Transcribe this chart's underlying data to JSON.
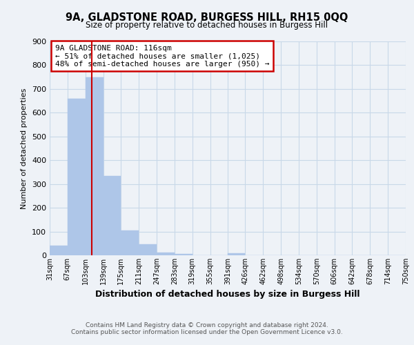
{
  "title": "9A, GLADSTONE ROAD, BURGESS HILL, RH15 0QQ",
  "subtitle": "Size of property relative to detached houses in Burgess Hill",
  "xlabel": "Distribution of detached houses by size in Burgess Hill",
  "ylabel": "Number of detached properties",
  "footnote1": "Contains HM Land Registry data © Crown copyright and database right 2024.",
  "footnote2": "Contains public sector information licensed under the Open Government Licence v3.0.",
  "annotation_line1": "9A GLADSTONE ROAD: 116sqm",
  "annotation_line2": "← 51% of detached houses are smaller (1,025)",
  "annotation_line3": "48% of semi-detached houses are larger (950) →",
  "bar_edges": [
    31,
    67,
    103,
    139,
    175,
    211,
    247,
    283,
    319,
    355,
    391,
    426,
    462,
    498,
    534,
    570,
    606,
    642,
    678,
    714,
    750
  ],
  "bar_heights": [
    40,
    660,
    750,
    335,
    105,
    47,
    12,
    5,
    0,
    0,
    8,
    0,
    0,
    0,
    0,
    0,
    0,
    0,
    0,
    0
  ],
  "bar_color": "#aec6e8",
  "bar_edge_color": "#aec6e8",
  "grid_color": "#c8d8e8",
  "background_color": "#eef2f7",
  "property_line_x": 116,
  "property_line_color": "#cc0000",
  "annotation_box_color": "#cc0000",
  "ylim": [
    0,
    900
  ],
  "yticks": [
    0,
    100,
    200,
    300,
    400,
    500,
    600,
    700,
    800,
    900
  ],
  "tick_labels": [
    "31sqm",
    "67sqm",
    "103sqm",
    "139sqm",
    "175sqm",
    "211sqm",
    "247sqm",
    "283sqm",
    "319sqm",
    "355sqm",
    "391sqm",
    "426sqm",
    "462sqm",
    "498sqm",
    "534sqm",
    "570sqm",
    "606sqm",
    "642sqm",
    "678sqm",
    "714sqm",
    "750sqm"
  ]
}
